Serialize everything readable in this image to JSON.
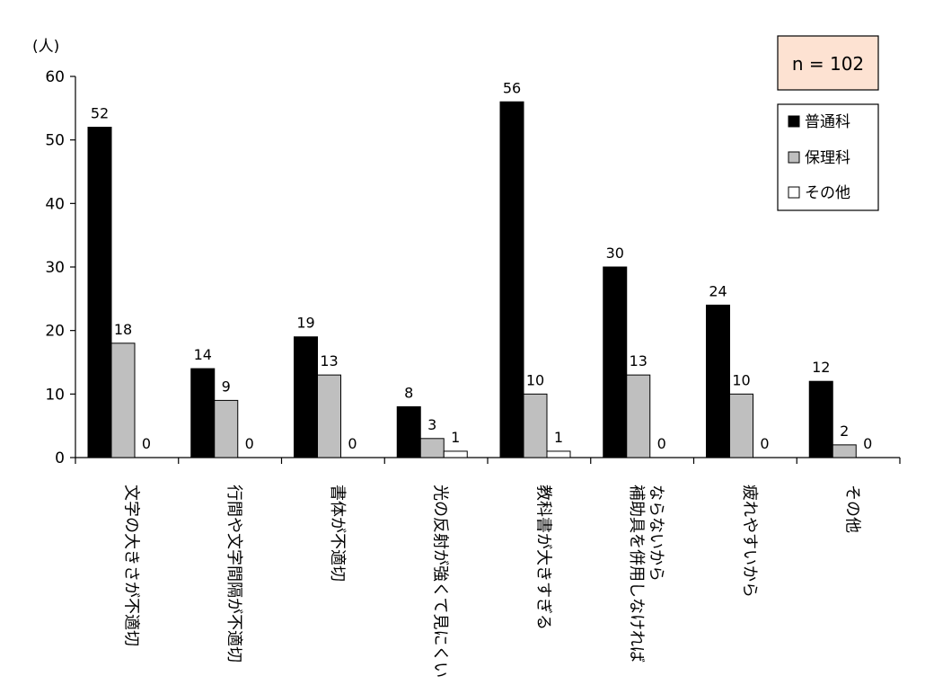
{
  "chart_data": {
    "type": "bar",
    "ylabel": "(人)",
    "ylim": [
      0,
      60
    ],
    "yticks": [
      0,
      10,
      20,
      30,
      40,
      50,
      60
    ],
    "grid": false,
    "legend_position": "top-right",
    "sample_size_label": "n = 102",
    "categories": [
      [
        "文字の大きさが不適切"
      ],
      [
        "行間や文字間隔が不適切"
      ],
      [
        "書体が不適切"
      ],
      [
        "光の反射が強くて見にくい"
      ],
      [
        "教科書が大きすぎる"
      ],
      [
        "補助具を併用しなければ",
        "ならないから"
      ],
      [
        "疲れやすいから"
      ],
      [
        "その他"
      ]
    ],
    "series": [
      {
        "name": "普通科",
        "color": "#000000",
        "values": [
          52,
          14,
          19,
          8,
          56,
          30,
          24,
          12
        ]
      },
      {
        "name": "保理科",
        "color": "#bfbfbf",
        "values": [
          18,
          9,
          13,
          3,
          10,
          13,
          10,
          2
        ]
      },
      {
        "name": "その他",
        "color": "#ffffff",
        "values": [
          0,
          0,
          0,
          1,
          1,
          0,
          0,
          0
        ]
      }
    ],
    "nbox_color": "#fde2d2"
  }
}
